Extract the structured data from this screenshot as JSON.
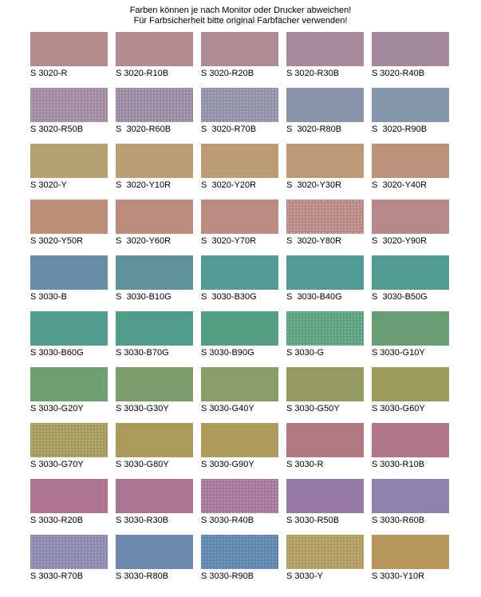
{
  "header": {
    "line1": "Farben können je nach Monitor oder Drucker abweichen!",
    "line2": "Für Farbsicherheit bitte original Farbfächer verwenden!",
    "text_color": "#000000"
  },
  "palette": {
    "columns": 5,
    "rows": 10,
    "swatches": [
      {
        "label": "S 3020-R",
        "color": "#b48b8b",
        "textured": false
      },
      {
        "label": "S 3020-R10B",
        "color": "#b18b91",
        "textured": false
      },
      {
        "label": "S 3020-R20B",
        "color": "#ae8a95",
        "textured": false
      },
      {
        "label": "S 3020-R30B",
        "color": "#a98a9a",
        "textured": false
      },
      {
        "label": "S 3020-R40B",
        "color": "#a4899d",
        "textured": false
      },
      {
        "label": "S 3020-R50B",
        "color": "#a0889f",
        "textured": true
      },
      {
        "label": "S  3020-R60B",
        "color": "#9a89a4",
        "textured": true
      },
      {
        "label": "S  3020-R70B",
        "color": "#9090a9",
        "textured": true
      },
      {
        "label": "S  3020-R80B",
        "color": "#8794ac",
        "textured": false
      },
      {
        "label": "S  3020-R90B",
        "color": "#8497ad",
        "textured": false
      },
      {
        "label": "S 3020-Y",
        "color": "#b6a173",
        "textured": false
      },
      {
        "label": "S  3020-Y10R",
        "color": "#b89f75",
        "textured": false
      },
      {
        "label": "S  3020-Y20R",
        "color": "#ba9c75",
        "textured": false
      },
      {
        "label": "S  3020-Y30R",
        "color": "#bb9977",
        "textured": false
      },
      {
        "label": "S  3020-Y40R",
        "color": "#bb937c",
        "textured": false
      },
      {
        "label": "S 3020-Y50R",
        "color": "#bc8f7a",
        "textured": false
      },
      {
        "label": "S  3020-Y60R",
        "color": "#bb8c7d",
        "textured": false
      },
      {
        "label": "S  3020-Y70R",
        "color": "#ba8b80",
        "textured": false
      },
      {
        "label": "S  3020-Y80R",
        "color": "#b78a85",
        "textured": true
      },
      {
        "label": "S  3020-Y90R",
        "color": "#b58a89",
        "textured": false
      },
      {
        "label": "S 3030-B",
        "color": "#6a8da6",
        "textured": false
      },
      {
        "label": "S  3030-B10G",
        "color": "#5f929c",
        "textured": false
      },
      {
        "label": "S  3030-B30G",
        "color": "#579a97",
        "textured": false
      },
      {
        "label": "S  3030-B40G",
        "color": "#559b95",
        "textured": false
      },
      {
        "label": "S  3030-B50G",
        "color": "#539c92",
        "textured": false
      },
      {
        "label": "S 3030-B60G",
        "color": "#519c8f",
        "textured": false
      },
      {
        "label": "S 3030-B70G",
        "color": "#529c8a",
        "textured": false
      },
      {
        "label": "S 3030-B90G",
        "color": "#559d83",
        "textured": false
      },
      {
        "label": "S 3030-G",
        "color": "#5ba080",
        "textured": true
      },
      {
        "label": "S 3030-G10Y",
        "color": "#689d73",
        "textured": false
      },
      {
        "label": "S 3030-G20Y",
        "color": "#6f9e71",
        "textured": false
      },
      {
        "label": "S 3030-G30Y",
        "color": "#7b9e6e",
        "textured": false
      },
      {
        "label": "S 3030-G40Y",
        "color": "#889d67",
        "textured": false
      },
      {
        "label": "S 3030-G50Y",
        "color": "#949c63",
        "textured": false
      },
      {
        "label": "S 3030-G60Y",
        "color": "#9e9b5f",
        "textured": false
      },
      {
        "label": "S 3030-G70Y",
        "color": "#a59a5c",
        "textured": true
      },
      {
        "label": "S 3030-G80Y",
        "color": "#ab9a5b",
        "textured": false
      },
      {
        "label": "S 3030-G90Y",
        "color": "#b09b5e",
        "textured": false
      },
      {
        "label": "S 3030-R",
        "color": "#b17883",
        "textured": false
      },
      {
        "label": "S 3030-R10B",
        "color": "#b1758a",
        "textured": false
      },
      {
        "label": "S 3030-R20B",
        "color": "#af758e",
        "textured": false
      },
      {
        "label": "S 3030-R30B",
        "color": "#aa7593",
        "textured": false
      },
      {
        "label": "S 3030-R40B",
        "color": "#a3779b",
        "textured": true
      },
      {
        "label": "S 3030-R50B",
        "color": "#9879a3",
        "textured": false
      },
      {
        "label": "S 3030-R60B",
        "color": "#8c82ab",
        "textured": false
      },
      {
        "label": "S 3030-R70B",
        "color": "#8b8aac",
        "textured": true
      },
      {
        "label": "S 3030-R80B",
        "color": "#6f88ae",
        "textured": false
      },
      {
        "label": "S 3030-R90B",
        "color": "#5e85ae",
        "textured": true
      },
      {
        "label": "S 3030-Y",
        "color": "#b19a5d",
        "textured": true
      },
      {
        "label": "S 3030-Y10R",
        "color": "#b8985f",
        "textured": false
      }
    ]
  }
}
